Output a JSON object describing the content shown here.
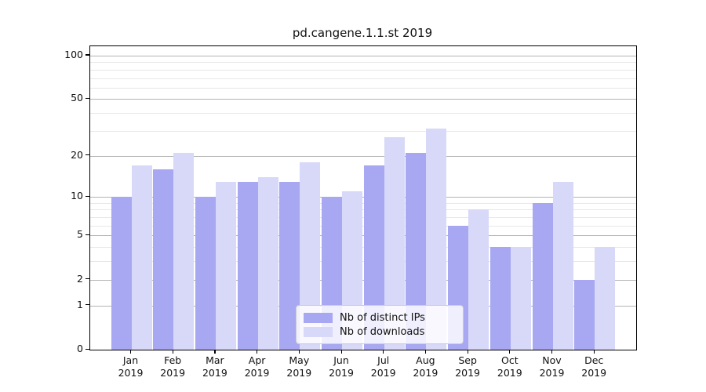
{
  "title": "pd.cangene.1.1.st 2019",
  "chart_data": {
    "type": "bar",
    "title": "pd.cangene.1.1.st 2019",
    "categories": [
      "Jan",
      "Feb",
      "Mar",
      "Apr",
      "May",
      "Jun",
      "Jul",
      "Aug",
      "Sep",
      "Oct",
      "Nov",
      "Dec"
    ],
    "category_year": "2019",
    "series": [
      {
        "name": "Nb of distinct IPs",
        "color": "#a7a7f2",
        "values": [
          10,
          16,
          10,
          13,
          13,
          10,
          17,
          21,
          6,
          4,
          9,
          2
        ]
      },
      {
        "name": "Nb of downloads",
        "color": "#d8d8f8",
        "values": [
          17,
          21,
          13,
          14,
          18,
          11,
          27,
          31,
          8,
          4,
          13,
          4
        ]
      }
    ],
    "yscale": "log10(1+x)",
    "yticks": [
      0,
      1,
      2,
      5,
      10,
      20,
      50,
      100
    ],
    "minor_gridlines": [
      3,
      4,
      6,
      7,
      8,
      9,
      30,
      40,
      60,
      70,
      80,
      90
    ],
    "ylim": [
      0,
      116
    ],
    "grid": true,
    "legend_position": "inside lower center-right"
  },
  "colors": {
    "grid_major": "#b3b3b3",
    "grid_minor": "#e7e7e7",
    "spine": "#000000",
    "background": "#ffffff"
  }
}
